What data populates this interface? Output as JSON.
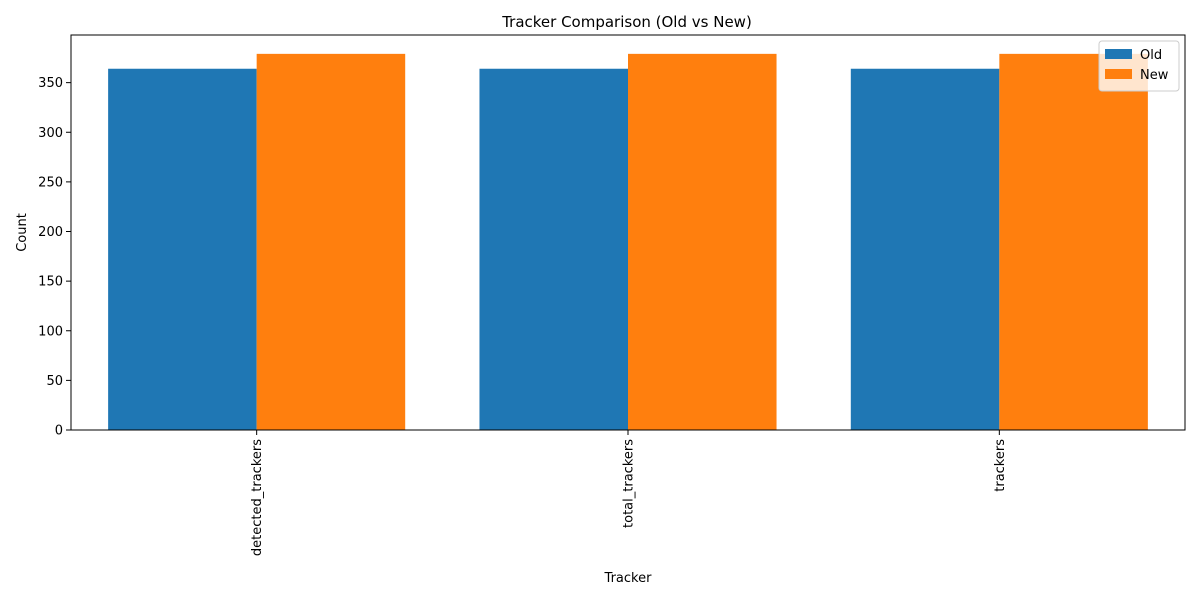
{
  "chart_data": {
    "type": "bar",
    "title": "Tracker Comparison (Old vs New)",
    "xlabel": "Tracker",
    "ylabel": "Count",
    "categories": [
      "detected_trackers",
      "total_trackers",
      "trackers"
    ],
    "series": [
      {
        "name": "Old",
        "color": "#1f77b4",
        "values": [
          364,
          364,
          364
        ]
      },
      {
        "name": "New",
        "color": "#ff7f0e",
        "values": [
          379,
          379,
          379
        ]
      }
    ],
    "ylim": [
      0,
      398
    ],
    "yticks": [
      0,
      50,
      100,
      150,
      200,
      250,
      300,
      350
    ],
    "grid": false,
    "legend_position": "top-right"
  }
}
